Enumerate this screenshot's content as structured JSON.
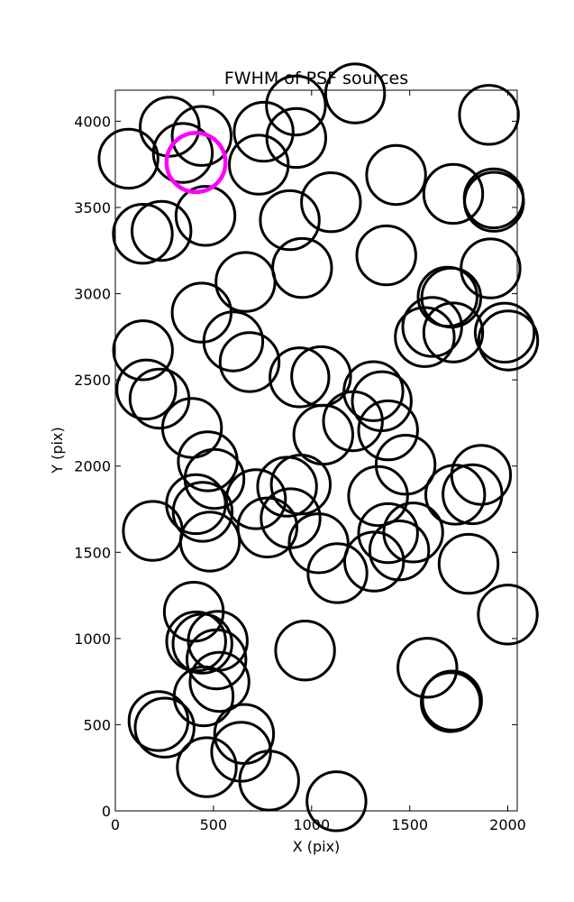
{
  "chart_data": {
    "type": "scatter",
    "title": "FWHM of PSF sources",
    "xlabel": "X (pix)",
    "ylabel": "Y (pix)",
    "xlim": [
      0,
      2048
    ],
    "ylim": [
      0,
      4180
    ],
    "xticks": [
      0,
      500,
      1000,
      1500,
      2000
    ],
    "yticks": [
      0,
      500,
      1000,
      1500,
      2000,
      2500,
      3000,
      3500,
      4000
    ],
    "grid": false,
    "legend": "none",
    "marker": "open-circle",
    "marker_radius": 150,
    "series": [
      {
        "color": "#000000",
        "x": [
          1222,
          920,
          277,
          440,
          756,
          922,
          1904,
          67,
          344,
          731,
          1431,
          1722,
          1928,
          1930,
          1099,
          459,
          889,
          140,
          235,
          1381,
          952,
          1912,
          663,
          1693,
          1712,
          440,
          1615,
          1577,
          1722,
          1984,
          2002,
          601,
          684,
          141,
          938,
          1049,
          158,
          1315,
          225,
          1358,
          391,
          1060,
          1211,
          1390,
          471,
          1479,
          505,
          1864,
          945,
          875,
          1732,
          1820,
          1339,
          717,
          411,
          893,
          445,
          1390,
          1518,
          191,
          775,
          1447,
          482,
          1036,
          1319,
          1800,
          1132,
          400,
          2000,
          412,
          522,
          967,
          444,
          515,
          1590,
          450,
          531,
          1716,
          1709,
          220,
          251,
          656,
          641,
          466,
          784,
          1127
        ],
        "y": [
          4161,
          4091,
          3968,
          3915,
          3939,
          3903,
          4037,
          3783,
          3816,
          3748,
          3688,
          3579,
          3553,
          3533,
          3530,
          3451,
          3426,
          3347,
          3364,
          3222,
          3149,
          3146,
          3068,
          2982,
          2977,
          2890,
          2807,
          2748,
          2775,
          2774,
          2728,
          2723,
          2603,
          2672,
          2515,
          2521,
          2444,
          2434,
          2391,
          2376,
          2221,
          2182,
          2260,
          2207,
          2028,
          2008,
          1925,
          1949,
          1893,
          1880,
          1834,
          1837,
          1826,
          1808,
          1779,
          1697,
          1735,
          1611,
          1615,
          1624,
          1644,
          1511,
          1562,
          1552,
          1446,
          1433,
          1379,
          1155,
          1139,
          983,
          986,
          930,
          970,
          879,
          830,
          665,
          748,
          640,
          631,
          521,
          483,
          446,
          343,
          253,
          176,
          56
        ]
      },
      {
        "color": "#ff00ff",
        "x": [
          411
        ],
        "y": [
          3761
        ]
      }
    ]
  }
}
